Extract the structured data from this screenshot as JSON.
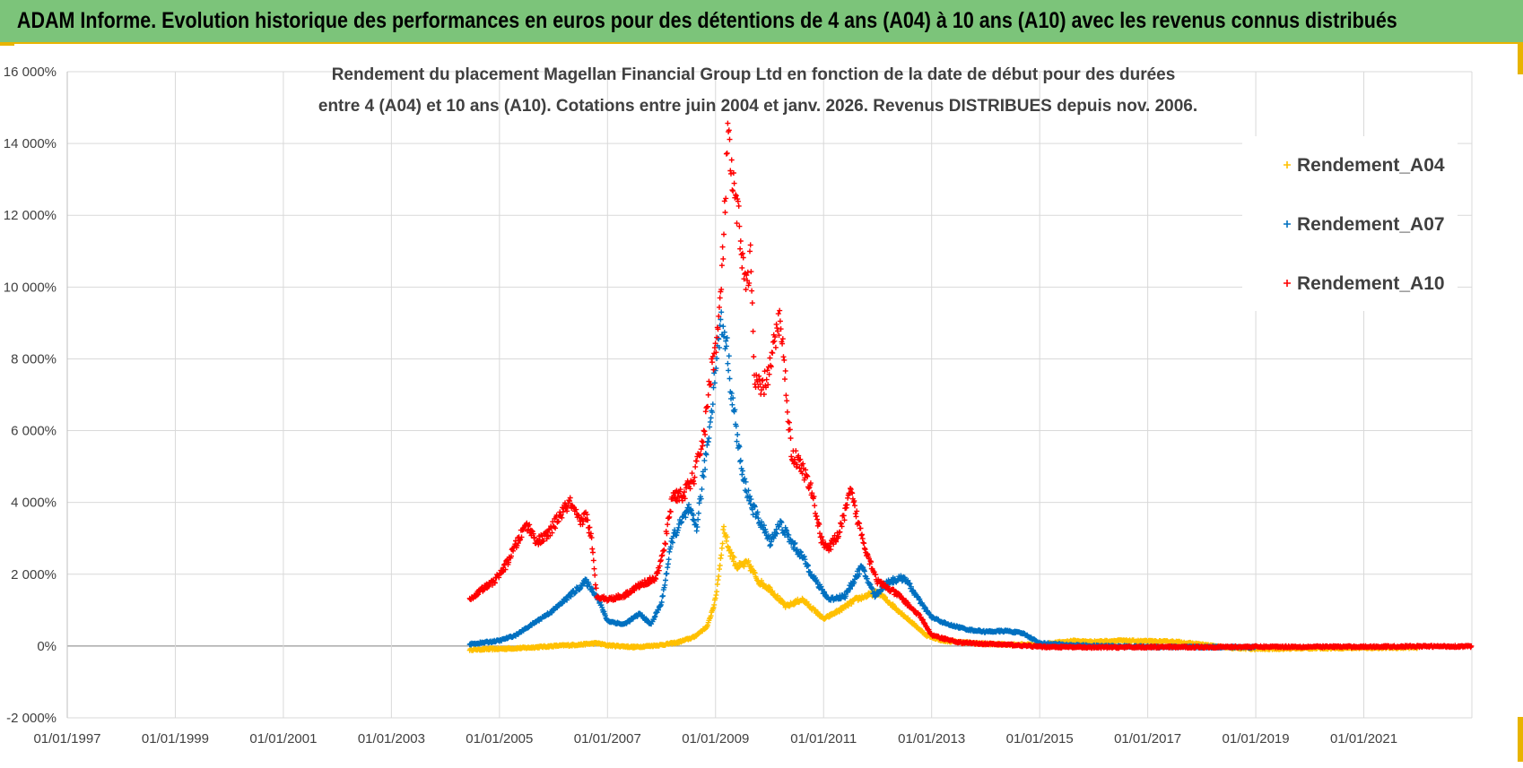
{
  "banner": {
    "title": "ADAM Informe. Evolution historique des performances en euros pour des détentions de 4 ans (A04) à 10 ans (A10) avec les revenus connus distribués"
  },
  "colors": {
    "banner_bg": "#7cc47a",
    "accent": "#e8b400",
    "A04": "#ffc000",
    "A07": "#0070c0",
    "A10": "#ff0000"
  },
  "chart_data": {
    "type": "scatter",
    "title": [
      "Rendement du placement Magellan Financial Group Ltd en fonction de la date de début pour des durées",
      "entre 4 (A04) et 10 ans (A10). Cotations entre juin 2004 et janv. 2026. Revenus DISTRIBUES depuis nov. 2006."
    ],
    "xlabel": "",
    "ylabel": "",
    "xlim": [
      1997.0,
      2023.0
    ],
    "ylim": [
      -20,
      160
    ],
    "x_tick_values": [
      1997,
      1999,
      2001,
      2003,
      2005,
      2007,
      2009,
      2011,
      2013,
      2015,
      2017,
      2019,
      2021
    ],
    "x_tick_labels": [
      "01/01/1997",
      "01/01/1999",
      "01/01/2001",
      "01/01/2003",
      "01/01/2005",
      "01/01/2007",
      "01/01/2009",
      "01/01/2011",
      "01/01/2013",
      "01/01/2015",
      "01/01/2017",
      "01/01/2019",
      "01/01/2021"
    ],
    "y_tick_values": [
      -20,
      0,
      20,
      40,
      60,
      80,
      100,
      120,
      140,
      160
    ],
    "y_tick_labels": [
      "-2 000%",
      "0%",
      "2 000%",
      "4 000%",
      "6 000%",
      "8 000%",
      "10 000%",
      "12 000%",
      "14 000%",
      "16 000%"
    ],
    "grid": true,
    "legend_position": "top-right",
    "marker": "+",
    "series": [
      {
        "name": "Rendement_A04",
        "color": "#ffc000",
        "points": [
          [
            2004.45,
            -1
          ],
          [
            2005.0,
            -0.8
          ],
          [
            2005.5,
            -0.5
          ],
          [
            2006.0,
            0
          ],
          [
            2006.5,
            0.4
          ],
          [
            2006.8,
            0.8
          ],
          [
            2007.0,
            0.2
          ],
          [
            2007.5,
            -0.3
          ],
          [
            2008.0,
            0.3
          ],
          [
            2008.3,
            1
          ],
          [
            2008.6,
            2.5
          ],
          [
            2008.85,
            5.5
          ],
          [
            2009.0,
            13
          ],
          [
            2009.1,
            25
          ],
          [
            2009.15,
            33
          ],
          [
            2009.25,
            27
          ],
          [
            2009.4,
            22
          ],
          [
            2009.6,
            23
          ],
          [
            2009.8,
            18
          ],
          [
            2010.0,
            16
          ],
          [
            2010.3,
            11
          ],
          [
            2010.6,
            13
          ],
          [
            2010.9,
            9
          ],
          [
            2011.0,
            7.5
          ],
          [
            2011.3,
            10
          ],
          [
            2011.6,
            13
          ],
          [
            2011.8,
            14
          ],
          [
            2012.0,
            15
          ],
          [
            2012.3,
            11
          ],
          [
            2012.6,
            7
          ],
          [
            2012.9,
            3
          ],
          [
            2013.2,
            1.5
          ],
          [
            2013.6,
            1
          ],
          [
            2014.0,
            0.6
          ],
          [
            2014.5,
            0.4
          ],
          [
            2015.0,
            0.4
          ],
          [
            2015.6,
            1.4
          ],
          [
            2016.0,
            1.2
          ],
          [
            2016.5,
            1.5
          ],
          [
            2017.0,
            1.3
          ],
          [
            2017.5,
            1.2
          ],
          [
            2018.0,
            0.4
          ],
          [
            2018.5,
            -0.5
          ],
          [
            2019.0,
            -0.8
          ],
          [
            2020.0,
            -0.6
          ],
          [
            2021.0,
            -0.5
          ],
          [
            2022.0,
            -0.4
          ]
        ]
      },
      {
        "name": "Rendement_A07",
        "color": "#0070c0",
        "points": [
          [
            2004.45,
            0.5
          ],
          [
            2005.0,
            1.5
          ],
          [
            2005.3,
            3
          ],
          [
            2005.6,
            6
          ],
          [
            2006.0,
            10
          ],
          [
            2006.3,
            14
          ],
          [
            2006.6,
            18
          ],
          [
            2006.8,
            14
          ],
          [
            2007.0,
            7
          ],
          [
            2007.3,
            6
          ],
          [
            2007.6,
            9
          ],
          [
            2007.8,
            6
          ],
          [
            2008.0,
            12
          ],
          [
            2008.2,
            30
          ],
          [
            2008.5,
            38
          ],
          [
            2008.65,
            33
          ],
          [
            2008.9,
            62
          ],
          [
            2009.0,
            78
          ],
          [
            2009.1,
            90
          ],
          [
            2009.2,
            85
          ],
          [
            2009.3,
            70
          ],
          [
            2009.5,
            47
          ],
          [
            2009.7,
            38
          ],
          [
            2009.85,
            34
          ],
          [
            2010.0,
            29
          ],
          [
            2010.2,
            34
          ],
          [
            2010.4,
            29
          ],
          [
            2010.6,
            25
          ],
          [
            2010.9,
            17
          ],
          [
            2011.1,
            13
          ],
          [
            2011.4,
            14
          ],
          [
            2011.7,
            22
          ],
          [
            2011.95,
            14
          ],
          [
            2012.2,
            18
          ],
          [
            2012.5,
            19
          ],
          [
            2012.8,
            12
          ],
          [
            2013.0,
            8
          ],
          [
            2013.3,
            6
          ],
          [
            2013.7,
            4.5
          ],
          [
            2014.0,
            4
          ],
          [
            2014.4,
            4.2
          ],
          [
            2014.7,
            3.5
          ],
          [
            2015.0,
            0.8
          ],
          [
            2015.5,
            0.3
          ],
          [
            2016.0,
            0
          ],
          [
            2017.0,
            -0.2
          ],
          [
            2018.0,
            -0.3
          ],
          [
            2019.0,
            -0.3
          ]
        ]
      },
      {
        "name": "Rendement_A10",
        "color": "#ff0000",
        "points": [
          [
            2004.45,
            13
          ],
          [
            2004.7,
            16
          ],
          [
            2004.9,
            18
          ],
          [
            2005.1,
            22
          ],
          [
            2005.3,
            28
          ],
          [
            2005.5,
            34
          ],
          [
            2005.7,
            29
          ],
          [
            2005.9,
            31
          ],
          [
            2006.1,
            36
          ],
          [
            2006.3,
            40
          ],
          [
            2006.5,
            34
          ],
          [
            2006.6,
            37
          ],
          [
            2006.7,
            30
          ],
          [
            2006.8,
            14
          ],
          [
            2007.0,
            13
          ],
          [
            2007.3,
            14
          ],
          [
            2007.6,
            17
          ],
          [
            2007.9,
            19
          ],
          [
            2008.05,
            27
          ],
          [
            2008.2,
            42
          ],
          [
            2008.4,
            42
          ],
          [
            2008.6,
            47
          ],
          [
            2008.8,
            60
          ],
          [
            2008.9,
            75
          ],
          [
            2009.05,
            88
          ],
          [
            2009.15,
            112
          ],
          [
            2009.22,
            142
          ],
          [
            2009.32,
            128
          ],
          [
            2009.45,
            116
          ],
          [
            2009.55,
            100
          ],
          [
            2009.65,
            108
          ],
          [
            2009.72,
            74
          ],
          [
            2009.85,
            71
          ],
          [
            2010.0,
            77
          ],
          [
            2010.1,
            85
          ],
          [
            2010.2,
            92
          ],
          [
            2010.4,
            54
          ],
          [
            2010.6,
            50
          ],
          [
            2010.8,
            42
          ],
          [
            2010.95,
            30
          ],
          [
            2011.1,
            27
          ],
          [
            2011.3,
            32
          ],
          [
            2011.5,
            43
          ],
          [
            2011.65,
            34
          ],
          [
            2011.8,
            26
          ],
          [
            2012.0,
            18
          ],
          [
            2012.4,
            14
          ],
          [
            2012.8,
            8
          ],
          [
            2013.0,
            3
          ],
          [
            2013.5,
            1
          ],
          [
            2014.0,
            0.6
          ],
          [
            2014.5,
            0.3
          ],
          [
            2015.0,
            -0.2
          ],
          [
            2016.0,
            -0.4
          ],
          [
            2017.0,
            -0.3
          ],
          [
            2018.0,
            -0.3
          ],
          [
            2019.0,
            -0.2
          ],
          [
            2020.0,
            -0.2
          ],
          [
            2021.0,
            -0.2
          ],
          [
            2022.0,
            -0.1
          ],
          [
            2023.0,
            -0.1
          ]
        ]
      }
    ]
  }
}
